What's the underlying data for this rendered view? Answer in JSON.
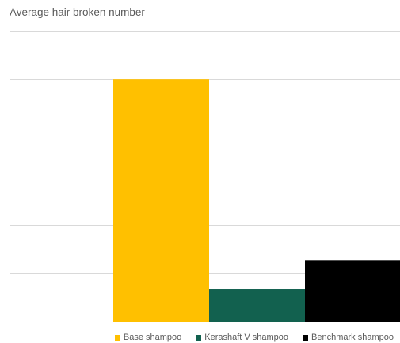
{
  "chart_data": {
    "type": "bar",
    "title": "Average hair broken number",
    "xlabel": "",
    "ylabel": "",
    "categories": [
      ""
    ],
    "series": [
      {
        "name": "Base shampoo",
        "values": [
          5
        ],
        "color": "#FFC000"
      },
      {
        "name": "Kerashaft V shampoo",
        "values": [
          0.67
        ],
        "color": "#12614F"
      },
      {
        "name": "Benchmark shampoo",
        "values": [
          1.27
        ],
        "color": "#000000"
      }
    ],
    "ylim": [
      0,
      6
    ],
    "y_ticks": [
      0,
      1,
      2,
      3,
      4,
      5,
      6
    ],
    "grid": true,
    "legend_position": "bottom-right"
  }
}
